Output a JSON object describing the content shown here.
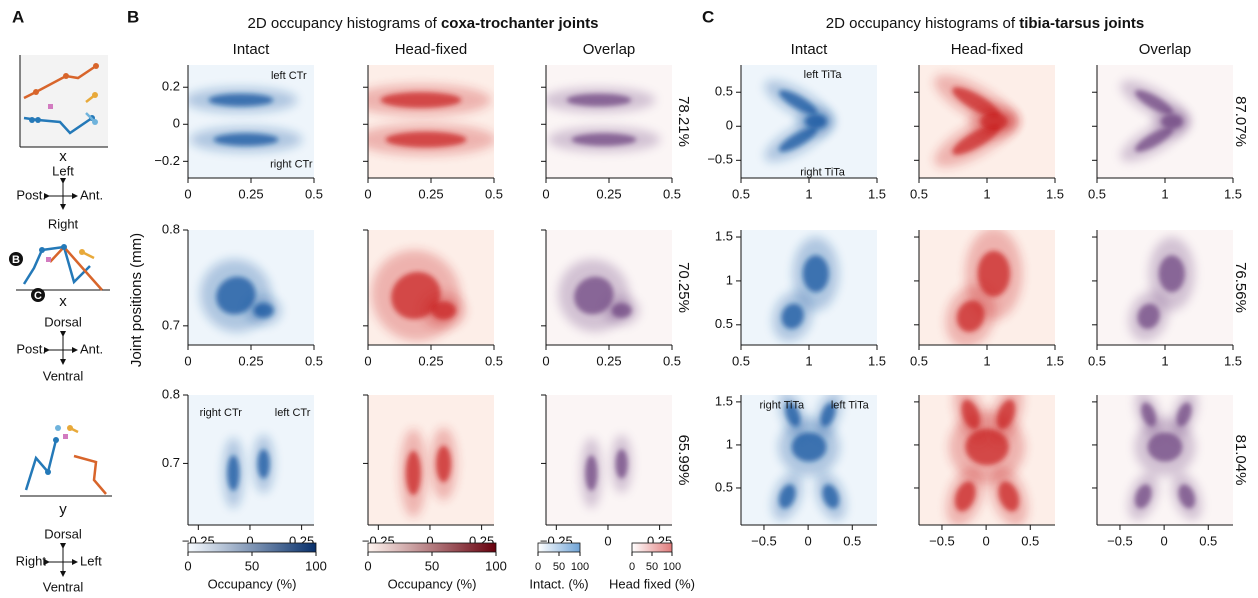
{
  "panel_labels": [
    "A",
    "B",
    "C"
  ],
  "panel_a": {
    "views": [
      {
        "axis_label": "x",
        "up": "Left",
        "down": "Right",
        "left": "Post.",
        "right": "Ant."
      },
      {
        "axis_label": "x",
        "up": "Dorsal",
        "down": "Ventral",
        "left": "Post.",
        "right": "Ant."
      },
      {
        "axis_label": "y",
        "up": "Dorsal",
        "down": "Ventral",
        "left": "Right",
        "right": "Left"
      }
    ],
    "callouts": [
      "B",
      "C"
    ]
  },
  "y_axis_label": "Joint positions (mm)",
  "column_colors": [
    "#0b4f9c",
    "#c81d1d",
    "#6a3f7e"
  ],
  "panels": [
    {
      "title": "2D occupancy histograms of ",
      "title_bold": "coxa-trochanter joints",
      "columns": [
        "Intact",
        "Head-fixed",
        "Overlap"
      ],
      "rows": [
        {
          "xlim": [
            0,
            0.5
          ],
          "xticks": [
            0,
            0.25,
            0.5
          ],
          "ylim": [
            -0.29,
            0.32
          ],
          "yticks": [
            {
              "value": -0.2,
              "label": "−0.2"
            },
            0,
            0.2
          ],
          "overlap": "78.21%",
          "annotations": [
            "left CTr",
            "right CTr"
          ]
        },
        {
          "xlim": [
            0,
            0.5
          ],
          "xticks": [
            0,
            0.25,
            0.5
          ],
          "ylim": [
            0.68,
            0.8
          ],
          "yticks": [
            0.7,
            0.8
          ],
          "overlap": "70.25%",
          "annotations": []
        },
        {
          "xlim": [
            -0.3,
            0.31
          ],
          "xticks": [
            {
              "value": -0.25,
              "label": "−0.25"
            },
            0,
            0.25
          ],
          "ylim": [
            0.61,
            0.8
          ],
          "yticks": [
            0.7,
            0.8
          ],
          "overlap": "65.99%",
          "annotations": [
            "right CTr",
            "left CTr"
          ]
        }
      ]
    },
    {
      "title": "2D occupancy histograms of ",
      "title_bold": "tibia-tarsus joints",
      "columns": [
        "Intact",
        "Head-fixed",
        "Overlap"
      ],
      "rows": [
        {
          "xlim": [
            0.5,
            1.5
          ],
          "xticks": [
            0.5,
            1,
            1.5
          ],
          "ylim": [
            -0.76,
            0.9
          ],
          "yticks": [
            {
              "value": -0.5,
              "label": "−0.5"
            },
            0,
            0.5
          ],
          "overlap": "87.07%",
          "annotations": [
            "left TiTa",
            "right TiTa"
          ]
        },
        {
          "xlim": [
            0.5,
            1.5
          ],
          "xticks": [
            0.5,
            1,
            1.5
          ],
          "ylim": [
            0.27,
            1.58
          ],
          "yticks": [
            0.5,
            1,
            1.5
          ],
          "overlap": "76.56%",
          "annotations": []
        },
        {
          "xlim": [
            -0.76,
            0.78
          ],
          "xticks": [
            {
              "value": -0.5,
              "label": "−0.5"
            },
            0,
            0.5
          ],
          "ylim": [
            0.07,
            1.58
          ],
          "yticks": [
            0.5,
            1,
            1.5
          ],
          "overlap": "81.04%",
          "annotations": [
            "right TiTa",
            "left TiTa"
          ]
        }
      ]
    }
  ],
  "colorbars": [
    {
      "lim": [
        0,
        100
      ],
      "ticks": [
        0,
        50,
        100
      ],
      "label": "Occupancy (%)",
      "colors": [
        "#f7fbff",
        "#08306b"
      ]
    },
    {
      "lim": [
        0,
        100
      ],
      "ticks": [
        0,
        50,
        100
      ],
      "label": "Occupancy (%)",
      "colors": [
        "#fff5f0",
        "#67000d"
      ]
    },
    {
      "lim": [
        0,
        100
      ],
      "ticks": [
        0,
        50,
        100
      ],
      "label": "Intact. (%)",
      "colors": [
        "#ffffff",
        "#6fa3d6"
      ]
    },
    {
      "lim": [
        0,
        100
      ],
      "ticks": [
        0,
        50,
        100
      ],
      "label": "Head fixed (%)",
      "colors": [
        "#ffffff",
        "#e07a7a"
      ]
    }
  ]
}
